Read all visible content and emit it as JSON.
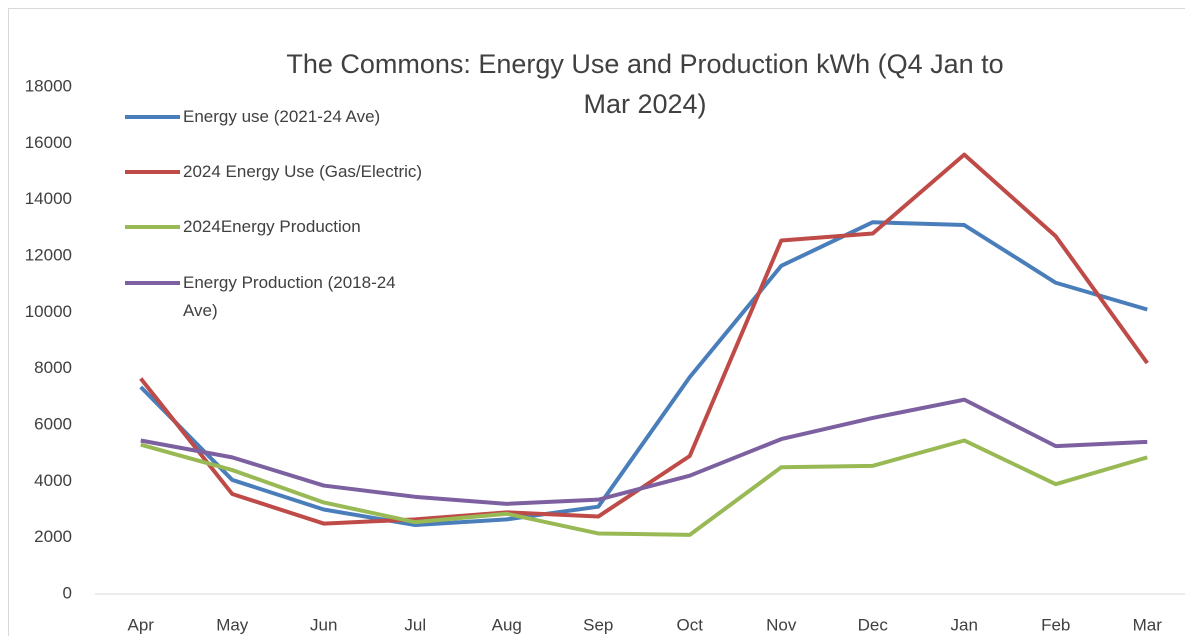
{
  "chart_data": {
    "type": "line",
    "title": "The Commons: Energy Use and Production kWh (Q4 Jan to Mar 2024)",
    "categories": [
      "Apr",
      "May",
      "Jun",
      "Jul",
      "Aug",
      "Sep",
      "Oct",
      "Nov",
      "Dec",
      "Jan",
      "Feb",
      "Mar"
    ],
    "series": [
      {
        "name": "Energy use (2021-24 Ave)",
        "color": "#4a7ebb",
        "values": [
          7350,
          4050,
          3000,
          2450,
          2650,
          3100,
          7700,
          11650,
          13200,
          13100,
          11050,
          10100
        ]
      },
      {
        "name": "2024 Energy Use (Gas/Electric)",
        "color": "#be4b48",
        "values": [
          7650,
          3550,
          2500,
          2650,
          2900,
          2750,
          4900,
          12550,
          12800,
          15600,
          12700,
          8200
        ]
      },
      {
        "name": "2024Energy Production",
        "color": "#98b954",
        "values": [
          5300,
          4400,
          3250,
          2550,
          2850,
          2150,
          2100,
          4500,
          4550,
          5450,
          3900,
          4850
        ]
      },
      {
        "name": "Energy Production (2018-24 Ave)",
        "color": "#7d60a0",
        "values": [
          5450,
          4850,
          3850,
          3450,
          3200,
          3350,
          4200,
          5500,
          6250,
          6900,
          5250,
          5400
        ]
      }
    ],
    "ylim": [
      0,
      18000
    ],
    "yticks": [
      0,
      2000,
      4000,
      6000,
      8000,
      10000,
      12000,
      14000,
      16000,
      18000
    ],
    "grid": false,
    "legend": "upper left"
  }
}
